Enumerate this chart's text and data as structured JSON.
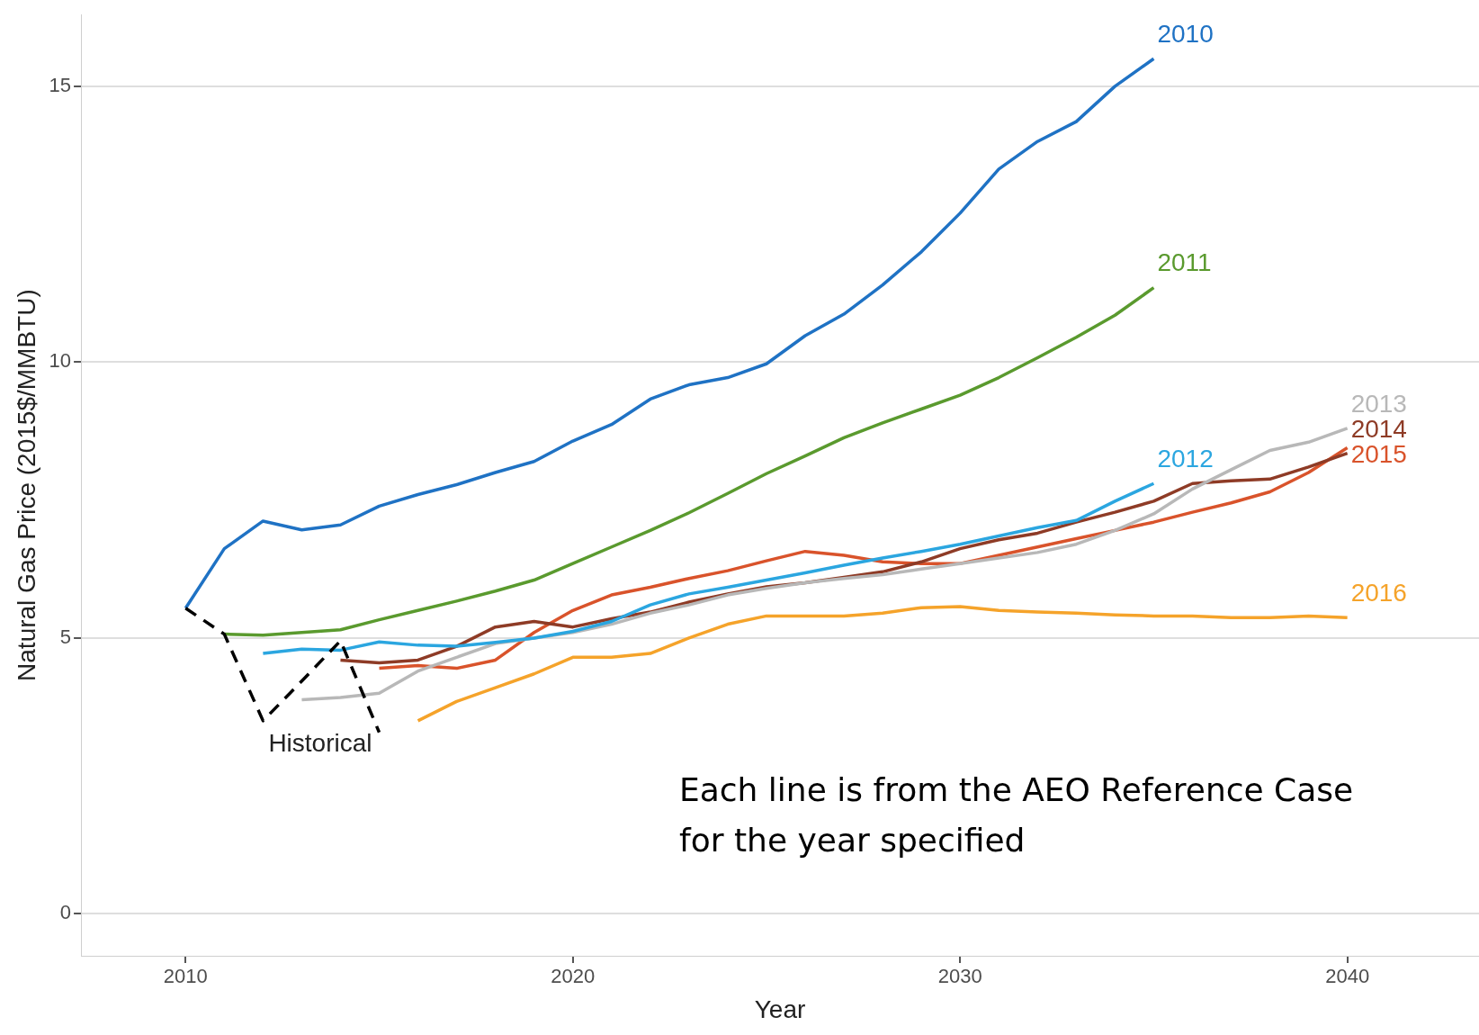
{
  "chart_data": {
    "type": "line",
    "xlabel": "Year",
    "ylabel": "Natural Gas Price (2015$/MMBTU)",
    "xlim": [
      2007.3,
      2043.4
    ],
    "xticks": [
      2010,
      2020,
      2030,
      2040
    ],
    "ylim": [
      -0.76,
      16.3
    ],
    "yticks": [
      0,
      5,
      10,
      15
    ],
    "grid": "y",
    "legend": false,
    "marker": "none",
    "annotations": [
      "Each line is from the AEO Reference Case for the year specified"
    ],
    "series": [
      {
        "name": "Historical",
        "color": "#000000",
        "line_style": "dashed",
        "x": [
          2010,
          2011,
          2012,
          2013,
          2014,
          2015
        ],
        "values": [
          5.54,
          5.07,
          3.5,
          4.22,
          4.95,
          3.29
        ]
      },
      {
        "name": "2010",
        "color": "#1f72c4",
        "x": [
          2010,
          2011,
          2012,
          2013,
          2014,
          2015,
          2016,
          2017,
          2018,
          2019,
          2020,
          2021,
          2022,
          2023,
          2024,
          2025,
          2026,
          2027,
          2028,
          2029,
          2030,
          2031,
          2032,
          2033,
          2034,
          2035
        ],
        "values": [
          5.54,
          6.62,
          7.12,
          6.96,
          7.05,
          7.39,
          7.6,
          7.78,
          8.0,
          8.2,
          8.57,
          8.87,
          9.33,
          9.59,
          9.72,
          9.97,
          10.48,
          10.87,
          11.4,
          12.0,
          12.7,
          13.5,
          14.0,
          14.36,
          15.0,
          15.5
        ]
      },
      {
        "name": "2011",
        "color": "#5a9a2e",
        "x": [
          2011,
          2012,
          2013,
          2014,
          2015,
          2016,
          2017,
          2018,
          2019,
          2020,
          2021,
          2022,
          2023,
          2024,
          2025,
          2026,
          2027,
          2028,
          2029,
          2030,
          2031,
          2032,
          2033,
          2034,
          2035
        ],
        "values": [
          5.07,
          5.05,
          5.1,
          5.15,
          5.33,
          5.5,
          5.67,
          5.85,
          6.05,
          6.35,
          6.65,
          6.95,
          7.27,
          7.62,
          7.98,
          8.3,
          8.63,
          8.9,
          9.15,
          9.4,
          9.72,
          10.08,
          10.45,
          10.85,
          11.35
        ]
      },
      {
        "name": "2012",
        "color": "#2ba6e0",
        "x": [
          2012,
          2013,
          2014,
          2015,
          2016,
          2017,
          2018,
          2019,
          2020,
          2021,
          2022,
          2023,
          2024,
          2025,
          2026,
          2027,
          2028,
          2029,
          2030,
          2031,
          2032,
          2033,
          2034,
          2035
        ],
        "values": [
          4.72,
          4.8,
          4.78,
          4.93,
          4.87,
          4.85,
          4.92,
          5.0,
          5.12,
          5.3,
          5.6,
          5.8,
          5.92,
          6.05,
          6.18,
          6.32,
          6.45,
          6.57,
          6.7,
          6.85,
          7.0,
          7.13,
          7.48,
          7.8
        ]
      },
      {
        "name": "2013",
        "color": "#b8b8b8",
        "x": [
          2013,
          2014,
          2015,
          2016,
          2017,
          2018,
          2019,
          2020,
          2021,
          2022,
          2023,
          2024,
          2025,
          2026,
          2027,
          2028,
          2029,
          2030,
          2031,
          2032,
          2033,
          2034,
          2035,
          2036,
          2037,
          2038,
          2039,
          2040
        ],
        "values": [
          3.88,
          3.92,
          4.0,
          4.4,
          4.65,
          4.9,
          5.0,
          5.1,
          5.25,
          5.45,
          5.6,
          5.78,
          5.9,
          6.0,
          6.08,
          6.15,
          6.25,
          6.35,
          6.45,
          6.55,
          6.7,
          6.95,
          7.25,
          7.7,
          8.05,
          8.4,
          8.55,
          8.8
        ]
      },
      {
        "name": "2014",
        "color": "#8e3b26",
        "x": [
          2014,
          2015,
          2016,
          2017,
          2018,
          2019,
          2020,
          2021,
          2022,
          2023,
          2024,
          2025,
          2026,
          2027,
          2028,
          2029,
          2030,
          2031,
          2032,
          2033,
          2034,
          2035,
          2036,
          2037,
          2038,
          2039,
          2040
        ],
        "values": [
          4.6,
          4.55,
          4.6,
          4.85,
          5.2,
          5.3,
          5.2,
          5.35,
          5.47,
          5.65,
          5.8,
          5.93,
          6.0,
          6.1,
          6.2,
          6.38,
          6.62,
          6.78,
          6.9,
          7.1,
          7.28,
          7.48,
          7.8,
          7.85,
          7.88,
          8.1,
          8.35
        ]
      },
      {
        "name": "2015",
        "color": "#d9532b",
        "x": [
          2015,
          2016,
          2017,
          2018,
          2019,
          2020,
          2021,
          2022,
          2023,
          2024,
          2025,
          2026,
          2027,
          2028,
          2029,
          2030,
          2031,
          2032,
          2033,
          2034,
          2035,
          2036,
          2037,
          2038,
          2039,
          2040
        ],
        "values": [
          4.45,
          4.5,
          4.45,
          4.6,
          5.1,
          5.5,
          5.78,
          5.92,
          6.08,
          6.22,
          6.4,
          6.57,
          6.5,
          6.38,
          6.35,
          6.35,
          6.5,
          6.65,
          6.8,
          6.95,
          7.1,
          7.28,
          7.45,
          7.65,
          8.0,
          8.45
        ]
      },
      {
        "name": "2016",
        "color": "#f5a32a",
        "x": [
          2016,
          2017,
          2018,
          2019,
          2020,
          2021,
          2022,
          2023,
          2024,
          2025,
          2026,
          2027,
          2028,
          2029,
          2030,
          2031,
          2032,
          2033,
          2034,
          2035,
          2036,
          2037,
          2038,
          2039,
          2040
        ],
        "values": [
          3.5,
          3.85,
          4.1,
          4.35,
          4.65,
          4.65,
          4.72,
          5.0,
          5.25,
          5.4,
          5.4,
          5.4,
          5.45,
          5.55,
          5.57,
          5.5,
          5.47,
          5.45,
          5.42,
          5.4,
          5.4,
          5.37,
          5.37,
          5.4,
          5.37
        ]
      }
    ]
  }
}
